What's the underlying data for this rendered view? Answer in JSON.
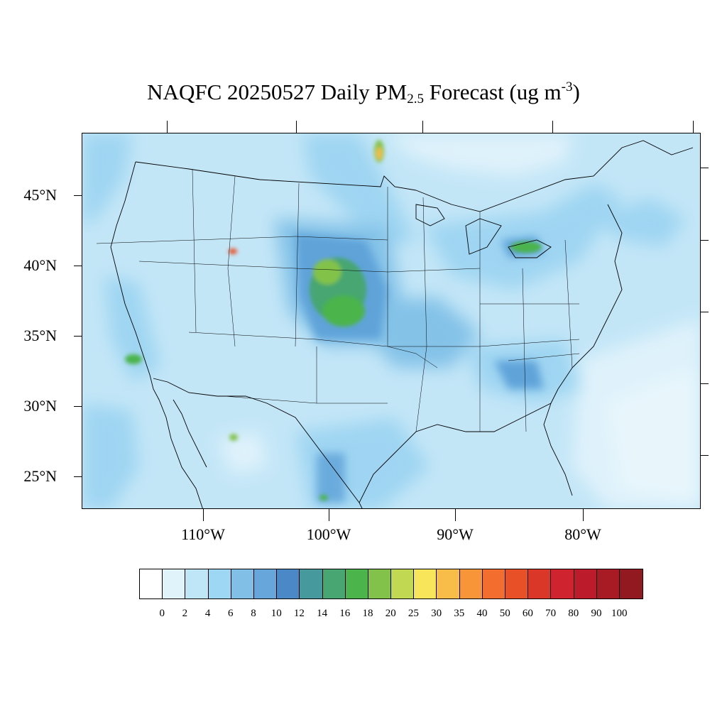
{
  "title": {
    "prefix": "NAQFC 20250527 Daily PM",
    "subscript": "2.5",
    "middle": " Forecast (ug m",
    "superscript": "-3",
    "suffix": ")"
  },
  "lat_labels": [
    "45°N",
    "40°N",
    "35°N",
    "30°N",
    "25°N"
  ],
  "lon_labels": [
    "110°W",
    "100°W",
    "90°W",
    "80°W"
  ],
  "colorbar": {
    "colors": [
      "#ffffff",
      "#e0f3fb",
      "#bfe6f7",
      "#9dd7f3",
      "#82bfe6",
      "#66a6da",
      "#4a88c8",
      "#46999c",
      "#47a671",
      "#4bb44b",
      "#82c24a",
      "#c1d853",
      "#f8e55a",
      "#f8bd48",
      "#f89538",
      "#f26d2e",
      "#e85128",
      "#db3728",
      "#cf2330",
      "#bb1b2b",
      "#a81a24",
      "#931920"
    ],
    "labels": [
      "0",
      "2",
      "4",
      "6",
      "8",
      "10",
      "12",
      "14",
      "16",
      "18",
      "20",
      "25",
      "30",
      "35",
      "40",
      "50",
      "60",
      "70",
      "80",
      "90",
      "100"
    ]
  },
  "colors": {
    "land_background": "#c3e6f7",
    "ocean_light": "#dff2fb",
    "plume_mid": "#84c2e8",
    "plume_dark": "#5fa3d9",
    "hotspot_green": "#4bb44b",
    "hotspot_red": "#e85128",
    "boundary": "#000000"
  }
}
